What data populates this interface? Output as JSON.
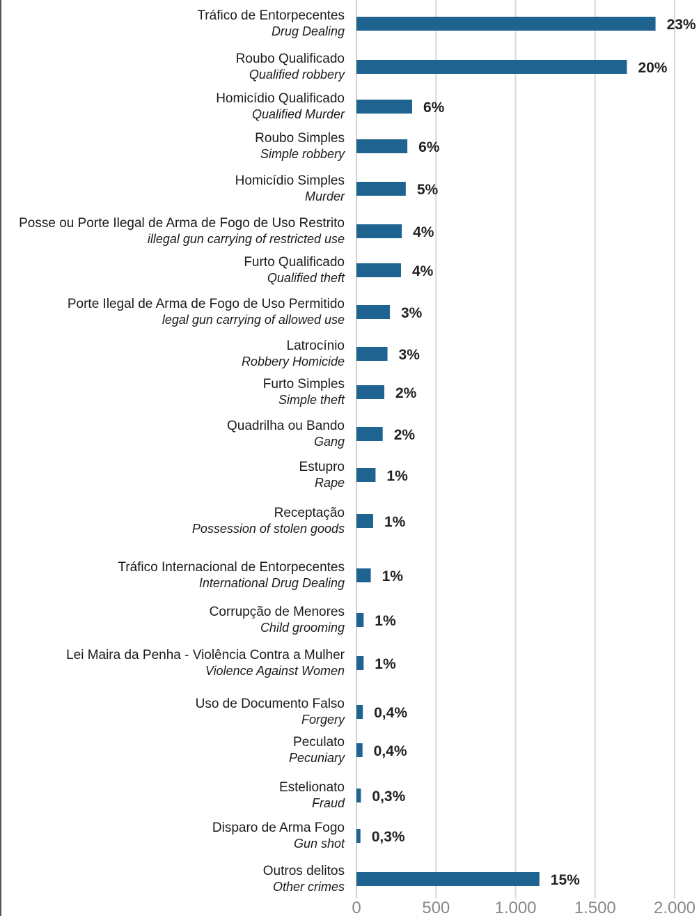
{
  "chart_data": {
    "type": "bar",
    "orientation": "horizontal",
    "bar_color": "#1f6391",
    "grid_color": "#d9d9d9",
    "grid": true,
    "xlim": [
      0,
      2000
    ],
    "x_ticks": [
      0,
      500,
      1000,
      1500,
      2000
    ],
    "x_tick_labels": [
      "0",
      "500",
      "1.000",
      "1.500",
      "2.000"
    ],
    "categories": [
      {
        "pt": "Tráfico de Entorpecentes",
        "en": "Drug Dealing",
        "value": 1880,
        "label": "23%"
      },
      {
        "pt": "Roubo Qualificado",
        "en": "Qualified robbery",
        "value": 1700,
        "label": "20%"
      },
      {
        "pt": "Homicídio Qualificado",
        "en": "Qualified Murder",
        "value": 350,
        "label": "6%"
      },
      {
        "pt": "Roubo Simples",
        "en": "Simple robbery",
        "value": 320,
        "label": "6%"
      },
      {
        "pt": "Homicídio Simples",
        "en": "Murder",
        "value": 310,
        "label": "5%"
      },
      {
        "pt": "Posse ou Porte Ilegal de Arma de Fogo de Uso Restrito",
        "en": "illegal gun carrying of restricted use",
        "value": 285,
        "label": "4%"
      },
      {
        "pt": "Furto Qualificado",
        "en": "Qualified theft",
        "value": 280,
        "label": "4%"
      },
      {
        "pt": "Porte Ilegal de Arma de Fogo de Uso Permitido",
        "en": "legal gun carrying of allowed use",
        "value": 210,
        "label": "3%"
      },
      {
        "pt": "Latrocínio",
        "en": "Robbery Homicide",
        "value": 195,
        "label": "3%"
      },
      {
        "pt": "Furto Simples",
        "en": "Simple theft",
        "value": 175,
        "label": "2%"
      },
      {
        "pt": "Quadrilha ou Bando",
        "en": "Gang",
        "value": 165,
        "label": "2%"
      },
      {
        "pt": "Estupro",
        "en": "Rape",
        "value": 120,
        "label": "1%"
      },
      {
        "pt": "Receptação",
        "en": "Possession of stolen goods",
        "value": 105,
        "label": "1%"
      },
      {
        "pt": "Tráfico Internacional de Entorpecentes",
        "en": "International  Drug Dealing",
        "value": 90,
        "label": "1%"
      },
      {
        "pt": "Corrupção de Menores",
        "en": "Child grooming",
        "value": 45,
        "label": "1%"
      },
      {
        "pt": "Lei Maira da Penha - Violência Contra a Mulher",
        "en": "Violence Against Women",
        "value": 45,
        "label": "1%"
      },
      {
        "pt": "Uso de Documento Falso",
        "en": "Forgery",
        "value": 40,
        "label": "0,4%"
      },
      {
        "pt": "Peculato",
        "en": "Pecuniary",
        "value": 38,
        "label": "0,4%"
      },
      {
        "pt": "Estelionato",
        "en": "Fraud",
        "value": 28,
        "label": "0,3%"
      },
      {
        "pt": "Disparo de Arma Fogo",
        "en": "Gun shot",
        "value": 25,
        "label": "0,3%"
      },
      {
        "pt": "Outros delitos",
        "en": "Other crimes",
        "value": 1150,
        "label": "15%"
      }
    ]
  }
}
